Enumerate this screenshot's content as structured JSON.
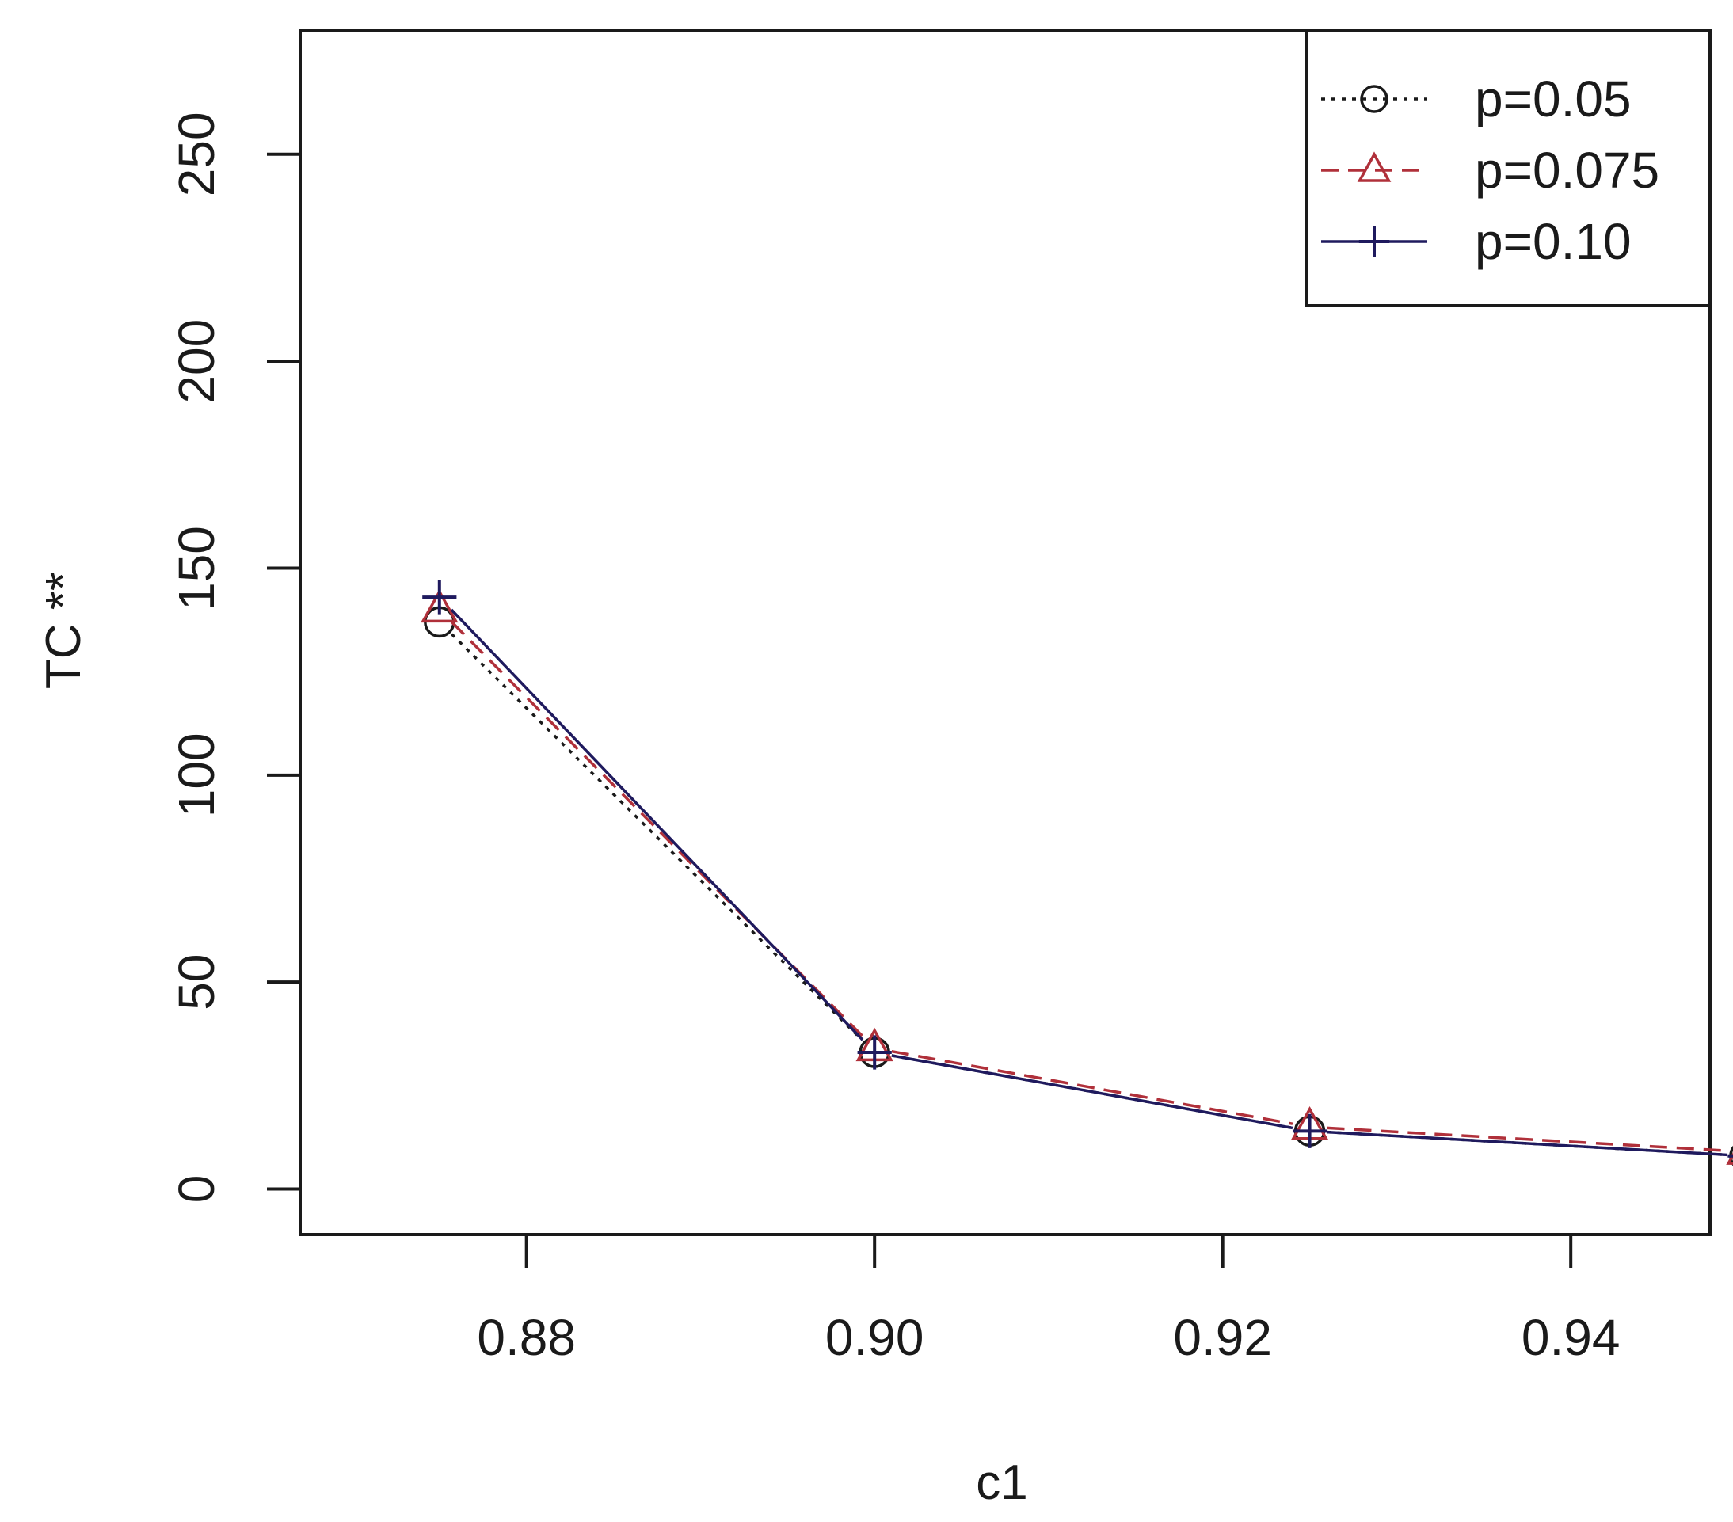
{
  "chart_data": {
    "type": "line",
    "title": "",
    "xlabel": "c1",
    "ylabel": "TC **",
    "xlim": [
      0.867,
      0.948
    ],
    "ylim": [
      -11,
      280
    ],
    "x_ticks": [
      0.88,
      0.9,
      0.92,
      0.94
    ],
    "x_tick_labels": [
      "0.88",
      "0.90",
      "0.92",
      "0.94"
    ],
    "y_ticks": [
      0,
      50,
      100,
      150,
      200,
      250
    ],
    "y_tick_labels": [
      "0",
      "50",
      "100",
      "150",
      "200",
      "250"
    ],
    "grid": false,
    "legend_position": "top-right",
    "series": [
      {
        "name": "p=0.05",
        "x": [
          0.875,
          0.9,
          0.925,
          0.95
        ],
        "y": [
          137,
          33,
          14,
          8
        ],
        "marker": "circle",
        "line_style": "dotted",
        "color": "#1a1a1a"
      },
      {
        "name": "p=0.075",
        "x": [
          0.875,
          0.9,
          0.925,
          0.95
        ],
        "y": [
          140,
          34,
          15,
          9
        ],
        "marker": "triangle",
        "line_style": "dashed",
        "color": "#b0303a"
      },
      {
        "name": "p=0.10",
        "x": [
          0.875,
          0.9,
          0.925,
          0.95
        ],
        "y": [
          143,
          33,
          14,
          8
        ],
        "marker": "plus",
        "line_style": "solid",
        "color": "#1f1a5e"
      }
    ]
  }
}
